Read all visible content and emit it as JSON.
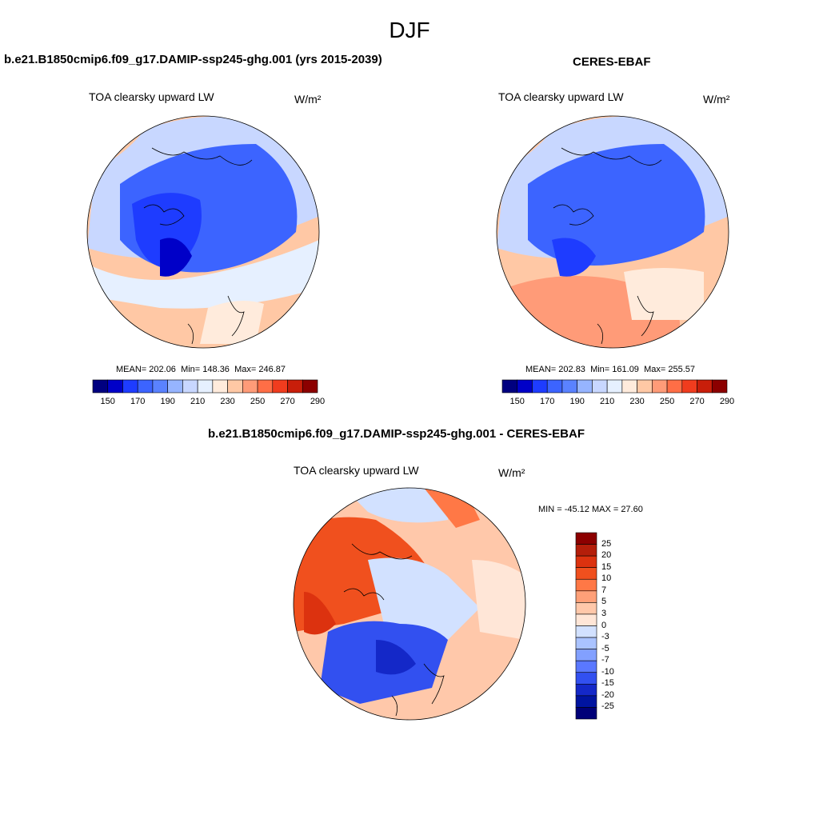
{
  "page": {
    "title": "DJF"
  },
  "panels": [
    {
      "id": "model",
      "title": "b.e21.B1850cmip6.f09_g17.DAMIP-ssp245-ghg.001 (yrs 2015-2039)",
      "variable": "TOA clearsky upward LW",
      "units": "W/m²",
      "stats": {
        "mean_label": "MEAN=",
        "mean": "202.06",
        "min_label": "Min=",
        "min": "148.36",
        "max_label": "Max=",
        "max": "246.87"
      }
    },
    {
      "id": "obs",
      "title": "CERES-EBAF",
      "variable": "TOA clearsky upward LW",
      "units": "W/m²",
      "stats": {
        "mean_label": "MEAN=",
        "mean": "202.83",
        "min_label": "Min=",
        "min": "161.09",
        "max_label": "Max=",
        "max": "255.57"
      }
    }
  ],
  "diff_panel": {
    "title": "b.e21.B1850cmip6.f09_g17.DAMIP-ssp245-ghg.001 - CERES-EBAF",
    "variable": "TOA clearsky upward LW",
    "units": "W/m²",
    "minmax": "MIN = -45.12 MAX =  27.60"
  },
  "colorbar_abs": {
    "tick_labels": [
      "150",
      "170",
      "190",
      "210",
      "230",
      "250",
      "270",
      "290"
    ],
    "colors": [
      "#000080",
      "#0000c8",
      "#1e3cff",
      "#3c64ff",
      "#5a82ff",
      "#96b4ff",
      "#c8d7ff",
      "#e6f0ff",
      "#ffebdc",
      "#ffc8a5",
      "#ff9b78",
      "#ff6e46",
      "#f03c1e",
      "#c81e0a",
      "#8c0000"
    ]
  },
  "colorbar_diff": {
    "tick_labels": [
      "25",
      "20",
      "15",
      "10",
      "7",
      "5",
      "3",
      "0",
      "-3",
      "-5",
      "-7",
      "-10",
      "-15",
      "-20",
      "-25"
    ],
    "colors": [
      "#8c0000",
      "#b41e0a",
      "#dc320f",
      "#f0501e",
      "#ff7846",
      "#ffa078",
      "#ffc8aa",
      "#ffe6d7",
      "#d2e1ff",
      "#aac3ff",
      "#82a0ff",
      "#5a78ff",
      "#3250f0",
      "#1428c8",
      "#0014a0",
      "#000078"
    ]
  }
}
